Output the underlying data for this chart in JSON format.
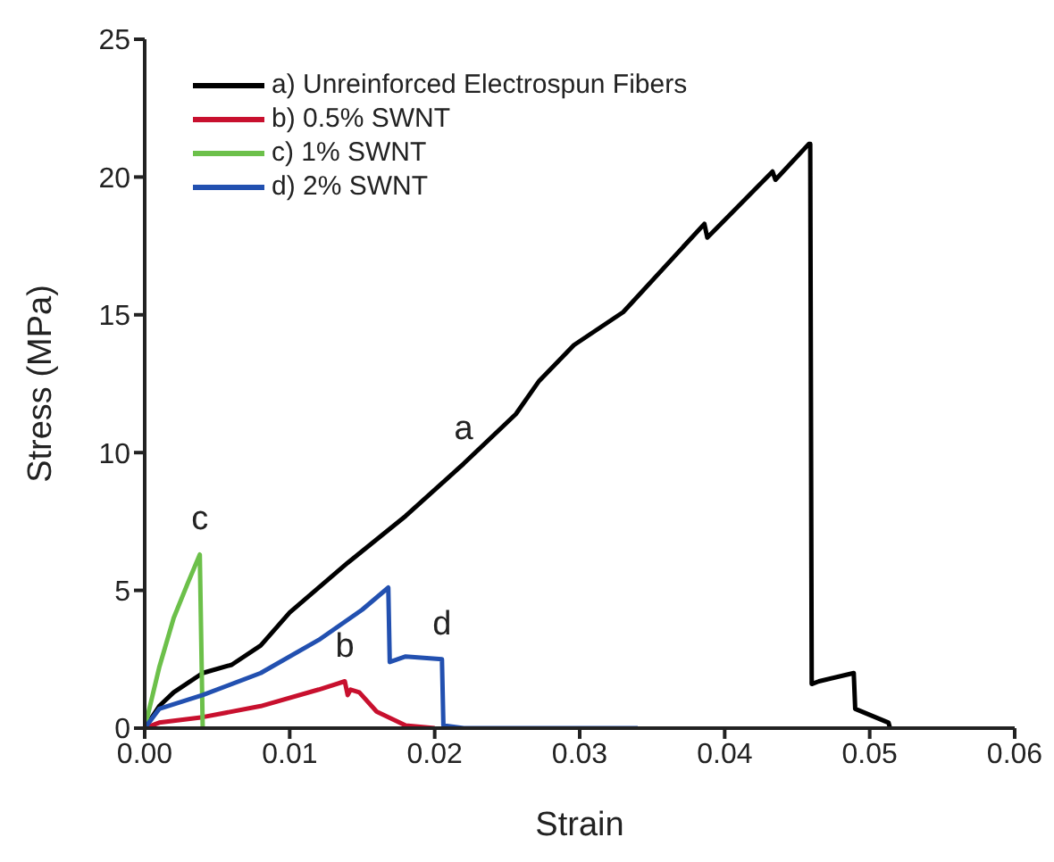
{
  "chart_data": {
    "type": "line",
    "xlabel": "Strain",
    "ylabel": "Stress (MPa)",
    "xlim": [
      0,
      0.06
    ],
    "ylim": [
      0,
      25
    ],
    "xticks": [
      {
        "value": 0,
        "label": "0.00"
      },
      {
        "value": 0.01,
        "label": "0.01"
      },
      {
        "value": 0.02,
        "label": "0.02"
      },
      {
        "value": 0.03,
        "label": "0.03"
      },
      {
        "value": 0.04,
        "label": "0.04"
      },
      {
        "value": 0.05,
        "label": "0.05"
      },
      {
        "value": 0.06,
        "label": "0.06"
      }
    ],
    "yticks": [
      0,
      5,
      10,
      15,
      20,
      25
    ],
    "grid": false,
    "legend": "top left",
    "marker": "none",
    "line_style": "solid",
    "series": [
      {
        "name": "a) Unreinforced Electrospun Fibers",
        "color": "#000000",
        "x": [
          0,
          0.001,
          0.002,
          0.004,
          0.006,
          0.008,
          0.01,
          0.014,
          0.018,
          0.022,
          0.0256,
          0.0272,
          0.0296,
          0.033,
          0.0386,
          0.0388,
          0.0433,
          0.0435,
          0.0458,
          0.0459,
          0.046,
          0.0465,
          0.0489,
          0.049,
          0.0513,
          0.0514
        ],
        "values": [
          0,
          0.8,
          1.3,
          2.0,
          2.3,
          3.0,
          4.2,
          6.0,
          7.7,
          9.6,
          11.4,
          12.6,
          13.9,
          15.1,
          18.3,
          17.8,
          20.2,
          19.9,
          21.2,
          21.2,
          1.6,
          1.7,
          2.0,
          0.7,
          0.2,
          0
        ]
      },
      {
        "name": "b) 0.5% SWNT",
        "color": "#c8102e",
        "x": [
          0,
          0.001,
          0.004,
          0.008,
          0.012,
          0.0138,
          0.014,
          0.0142,
          0.0148,
          0.016,
          0.018,
          0.02
        ],
        "values": [
          0,
          0.2,
          0.4,
          0.8,
          1.4,
          1.7,
          1.2,
          1.4,
          1.3,
          0.6,
          0.1,
          0
        ]
      },
      {
        "name": "c) 1% SWNT",
        "color": "#6cc04a",
        "x": [
          0,
          0.001,
          0.002,
          0.003,
          0.0038,
          0.004
        ],
        "values": [
          0,
          2.2,
          4.0,
          5.3,
          6.3,
          0
        ]
      },
      {
        "name": "d) 2% SWNT",
        "color": "#2250b0",
        "x": [
          0,
          0.001,
          0.004,
          0.008,
          0.012,
          0.015,
          0.0168,
          0.0169,
          0.018,
          0.0205,
          0.0206,
          0.022,
          0.034
        ],
        "values": [
          0,
          0.7,
          1.2,
          2.0,
          3.2,
          4.3,
          5.1,
          2.4,
          2.6,
          2.5,
          0.1,
          0,
          0
        ]
      }
    ],
    "annotations": [
      {
        "text": "a",
        "x": 0.022,
        "y": 9.6
      },
      {
        "text": "b",
        "x": 0.0138,
        "y": 1.7
      },
      {
        "text": "c",
        "x": 0.0038,
        "y": 6.3
      },
      {
        "text": "d",
        "x": 0.0205,
        "y": 2.5
      }
    ]
  }
}
